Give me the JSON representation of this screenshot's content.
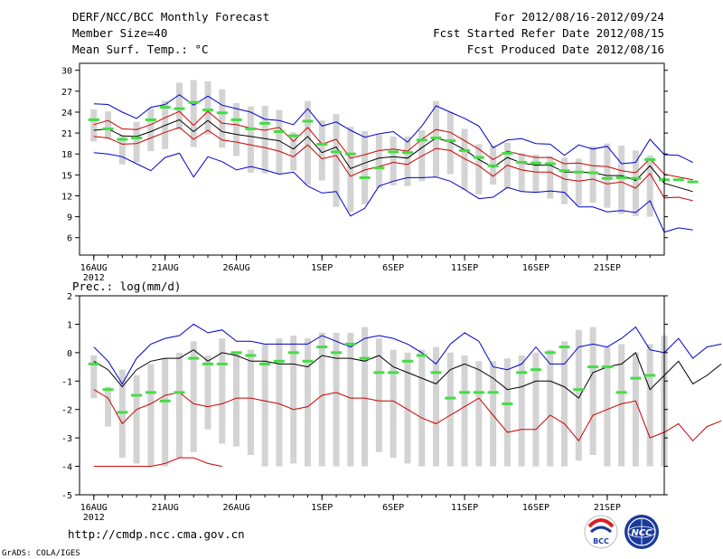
{
  "header": {
    "title": "DERF/NCC/BCC Monthly Forecast",
    "member_size": "Member Size=40",
    "temp_label": "Mean Surf. Temp.: °C",
    "forecast_period": "For 2012/08/16-2012/09/24",
    "fcst_started": "Fcst Started Refer Date 2012/08/15",
    "fcst_produced": "Fcst Produced Date 2012/08/16"
  },
  "footer": {
    "url": "http://cmdp.ncc.cma.gov.cn",
    "grads": "GrADS: COLA/IGES",
    "logo_bcc_text": "BCC",
    "logo_ncc_text": "NCC"
  },
  "colors": {
    "range_bar": "#d3d3d3",
    "ensemble_max_min": "#0000cc",
    "spread": "#cc0000",
    "ensemble_mean": "#000000",
    "climatology": "#44dd44"
  },
  "chart_data": [
    {
      "type": "line",
      "panel": "temperature",
      "ylabel": "Mean Surf. Temp.: °C",
      "ylim": [
        3.5,
        31
      ],
      "yticks": [
        6,
        9,
        12,
        15,
        18,
        21,
        24,
        27,
        30
      ],
      "xlim": [
        -1,
        40
      ],
      "xtick_days": [
        0,
        5,
        10,
        16,
        21,
        26,
        31,
        36
      ],
      "xtick_labels": [
        "16AUG",
        "21AUG",
        "26AUG",
        "1SEP",
        "6SEP",
        "11SEP",
        "16SEP",
        "21SEP"
      ],
      "xyear": "2012",
      "series": [
        {
          "name": "range_top",
          "values": [
            24.4,
            24.1,
            20.7,
            22.6,
            24.6,
            25.6,
            28.2,
            28.6,
            28.4,
            27.3,
            25.3,
            24.8,
            24.9,
            24.3,
            21.1,
            25.6,
            22.8,
            23.7,
            21.9,
            21.3,
            20.8,
            20.5,
            20.5,
            21.4,
            25.6,
            24.0,
            21.6,
            19.4,
            19.2,
            19.6,
            18.1,
            17.9,
            17.7,
            17.5,
            17.3,
            19.1,
            19.5,
            19.2,
            18.5,
            17.8
          ]
        },
        {
          "name": "range_bottom",
          "values": [
            19.8,
            20.2,
            16.5,
            16.8,
            18.4,
            18.7,
            21.5,
            19.0,
            20.8,
            18.9,
            17.7,
            15.3,
            15.2,
            15.1,
            15.6,
            13.6,
            14.2,
            10.4,
            9.7,
            10.8,
            13.1,
            13.5,
            13.4,
            14.1,
            14.6,
            15.1,
            12.8,
            12.2,
            13.6,
            13.0,
            12.6,
            12.5,
            11.6,
            10.8,
            10.6,
            11.0,
            10.3,
            9.4,
            9.1,
            9.0
          ]
        },
        {
          "name": "ensemble_max",
          "values": [
            25.2,
            25.1,
            24.0,
            23.1,
            24.7,
            25.1,
            26.5,
            25.0,
            26.3,
            25.0,
            24.5,
            24.0,
            23.0,
            22.8,
            22.2,
            24.5,
            22.0,
            22.6,
            21.4,
            20.4,
            20.9,
            21.2,
            19.7,
            22.0,
            24.9,
            24.0,
            23.1,
            22.0,
            18.9,
            20.0,
            20.2,
            19.5,
            19.4,
            17.8,
            19.3,
            18.7,
            19.1,
            16.6,
            16.8,
            20.1,
            17.9,
            17.8,
            16.8
          ]
        },
        {
          "name": "spread_upper",
          "values": [
            22.2,
            22.8,
            21.6,
            21.5,
            22.2,
            23.2,
            24.1,
            22.1,
            24.1,
            22.4,
            22.2,
            21.7,
            21.4,
            21.8,
            19.8,
            21.8,
            19.4,
            20.1,
            17.4,
            17.9,
            18.5,
            18.7,
            18.4,
            20.1,
            21.5,
            21.1,
            19.9,
            18.7,
            17.2,
            18.4,
            17.9,
            17.5,
            17.5,
            16.6,
            16.7,
            16.3,
            16.2,
            15.6,
            15.3,
            17.3,
            15.1,
            14.7,
            14.3
          ]
        },
        {
          "name": "ensemble_mean",
          "values": [
            21.4,
            21.6,
            20.6,
            20.5,
            21.2,
            22.1,
            22.9,
            21.2,
            22.8,
            21.2,
            20.8,
            20.5,
            20.2,
            19.9,
            18.7,
            20.5,
            18.2,
            19.0,
            15.9,
            16.7,
            17.4,
            17.6,
            17.4,
            18.9,
            20.3,
            19.7,
            18.6,
            17.2,
            16.1,
            17.5,
            16.7,
            16.4,
            16.4,
            15.4,
            15.4,
            15.3,
            14.9,
            14.9,
            14.2,
            16.3,
            13.8,
            13.2,
            12.6
          ]
        },
        {
          "name": "spread_lower",
          "values": [
            20.5,
            20.3,
            19.4,
            19.5,
            20.3,
            21.1,
            21.8,
            20.1,
            21.4,
            20.0,
            19.7,
            19.3,
            18.9,
            18.4,
            17.6,
            19.3,
            17.3,
            17.8,
            14.8,
            15.7,
            16.2,
            16.8,
            16.5,
            17.7,
            18.8,
            18.5,
            17.3,
            16.3,
            14.8,
            16.4,
            15.7,
            15.4,
            15.4,
            14.4,
            14.1,
            14.4,
            13.7,
            14.0,
            13.1,
            15.2,
            11.7,
            11.8,
            11.3
          ]
        },
        {
          "name": "ensemble_min",
          "values": [
            18.2,
            18.0,
            17.6,
            16.6,
            15.6,
            17.5,
            18.1,
            14.7,
            17.6,
            16.9,
            15.7,
            16.2,
            15.7,
            15.1,
            15.4,
            13.4,
            12.4,
            12.6,
            9.1,
            10.2,
            13.4,
            14.1,
            14.6,
            14.6,
            14.7,
            14.1,
            12.9,
            11.6,
            11.8,
            13.2,
            12.6,
            12.5,
            12.7,
            12.5,
            10.4,
            10.4,
            9.7,
            9.9,
            9.6,
            11.3,
            6.8,
            7.4,
            7.1
          ]
        },
        {
          "name": "climatology",
          "values": [
            22.9,
            21.6,
            20.1,
            20.3,
            22.9,
            24.7,
            24.5,
            25.4,
            24.3,
            23.9,
            22.9,
            21.6,
            22.4,
            21.2,
            20.6,
            22.7,
            19.4,
            18.3,
            18.0,
            14.6,
            16.0,
            18.3,
            18.2,
            20.0,
            20.3,
            19.9,
            18.5,
            17.5,
            16.3,
            18.1,
            16.8,
            16.7,
            16.6,
            15.6,
            15.4,
            15.3,
            14.5,
            14.6,
            14.5,
            17.2,
            14.3,
            14.3,
            14.0
          ]
        }
      ]
    },
    {
      "type": "line",
      "panel": "precipitation",
      "ylabel": "Prec.: log(mm/d)",
      "ylim": [
        -5,
        2
      ],
      "yticks": [
        -5,
        -4,
        -3,
        -2,
        -1,
        0,
        1,
        2
      ],
      "xlim": [
        -1,
        40
      ],
      "xtick_days": [
        0,
        5,
        10,
        16,
        21,
        26,
        31,
        36
      ],
      "xtick_labels": [
        "16AUG",
        "21AUG",
        "26AUG",
        "1SEP",
        "6SEP",
        "11SEP",
        "16SEP",
        "21SEP"
      ],
      "xyear": "2012",
      "series": [
        {
          "name": "range_top",
          "values": [
            -0.1,
            -1.2,
            -0.6,
            -0.8,
            -0.4,
            -0.2,
            0.0,
            0.4,
            -0.1,
            0.5,
            0.0,
            0.1,
            0.3,
            0.5,
            0.6,
            0.5,
            0.7,
            0.7,
            0.7,
            0.9,
            0.5,
            0.1,
            0.0,
            0.1,
            0.2,
            0.0,
            -0.1,
            -0.3,
            -0.3,
            -0.2,
            -0.1,
            0.0,
            0.1,
            0.4,
            0.8,
            0.9,
            0.2,
            0.3,
            0.0,
            0.3,
            0.6
          ]
        },
        {
          "name": "range_bottom",
          "values": [
            -1.6,
            -2.6,
            -3.7,
            -3.9,
            -4.0,
            -4.0,
            -3.7,
            -3.5,
            -2.7,
            -3.2,
            -3.3,
            -3.6,
            -4.0,
            -4.0,
            -3.9,
            -4.0,
            -4.0,
            -4.0,
            -4.0,
            -4.0,
            -3.5,
            -3.7,
            -3.9,
            -4.0,
            -4.0,
            -4.0,
            -4.0,
            -4.0,
            -4.0,
            -4.0,
            -4.0,
            -4.0,
            -4.0,
            -4.0,
            -3.8,
            -3.6,
            -4.0,
            -4.0,
            -4.0,
            -4.0,
            -4.0
          ]
        },
        {
          "name": "ensemble_max",
          "values": [
            0.2,
            -0.3,
            -1.1,
            -0.2,
            0.3,
            0.5,
            0.6,
            1.0,
            0.7,
            0.8,
            0.4,
            0.4,
            0.3,
            0.3,
            0.3,
            0.3,
            0.6,
            0.4,
            0.2,
            0.5,
            0.6,
            0.5,
            0.3,
            0.0,
            -0.4,
            0.3,
            0.7,
            0.4,
            -0.5,
            -0.6,
            -0.4,
            0.2,
            -0.4,
            -0.4,
            0.2,
            0.3,
            0.2,
            0.5,
            0.9,
            0.1,
            0.0,
            0.5,
            -0.2,
            0.2,
            0.3
          ]
        },
        {
          "name": "spread_lower",
          "values": [
            -1.3,
            -1.6,
            -2.5,
            -2.0,
            -1.8,
            -1.5,
            -1.4,
            -1.8,
            -1.9,
            -1.8,
            -1.6,
            -1.6,
            -1.7,
            -1.8,
            -2.0,
            -1.9,
            -1.5,
            -1.4,
            -1.6,
            -1.6,
            -1.7,
            -1.7,
            -2.0,
            -2.3,
            -2.5,
            -2.2,
            -1.9,
            -1.6,
            -2.2,
            -2.8,
            -2.7,
            -2.7,
            -2.2,
            -2.5,
            -3.1,
            -2.2,
            -2.0,
            -1.8,
            -1.7,
            -3.0,
            -2.8,
            -2.5,
            -3.1,
            -2.6,
            -2.4
          ]
        },
        {
          "name": "ensemble_mean",
          "values": [
            -0.3,
            -0.6,
            -1.2,
            -0.6,
            -0.3,
            -0.2,
            -0.2,
            0.1,
            -0.3,
            0.0,
            -0.1,
            -0.3,
            -0.3,
            -0.4,
            -0.4,
            -0.5,
            -0.1,
            -0.2,
            -0.2,
            -0.3,
            -0.1,
            -0.5,
            -0.7,
            -0.9,
            -1.1,
            -0.6,
            -0.4,
            -0.6,
            -0.9,
            -1.3,
            -1.2,
            -1.0,
            -1.0,
            -1.2,
            -1.6,
            -0.7,
            -0.5,
            -0.4,
            0.0,
            -1.3,
            -0.8,
            -0.3,
            -1.1,
            -0.8,
            -0.4
          ]
        },
        {
          "name": "range_lower_red",
          "values": [
            -4.0,
            -4.0,
            -4.0,
            -4.0,
            -4.0,
            -3.9,
            -3.7,
            -3.7,
            -3.9,
            -4.0
          ]
        },
        {
          "name": "climatology",
          "values": [
            -0.4,
            -1.3,
            -2.1,
            -1.5,
            -1.4,
            -1.7,
            -1.4,
            -0.2,
            -0.4,
            -0.4,
            0.0,
            -0.1,
            -0.4,
            -0.3,
            0.0,
            -0.3,
            0.2,
            0.0,
            0.3,
            -0.2,
            -0.7,
            -0.7,
            -0.3,
            -0.1,
            -0.7,
            -1.6,
            -1.4,
            -1.4,
            -1.4,
            -1.8,
            -0.7,
            -0.6,
            0.0,
            0.2,
            -1.3,
            -0.5,
            -0.5,
            -1.4,
            -0.9,
            -0.8
          ]
        }
      ]
    }
  ]
}
